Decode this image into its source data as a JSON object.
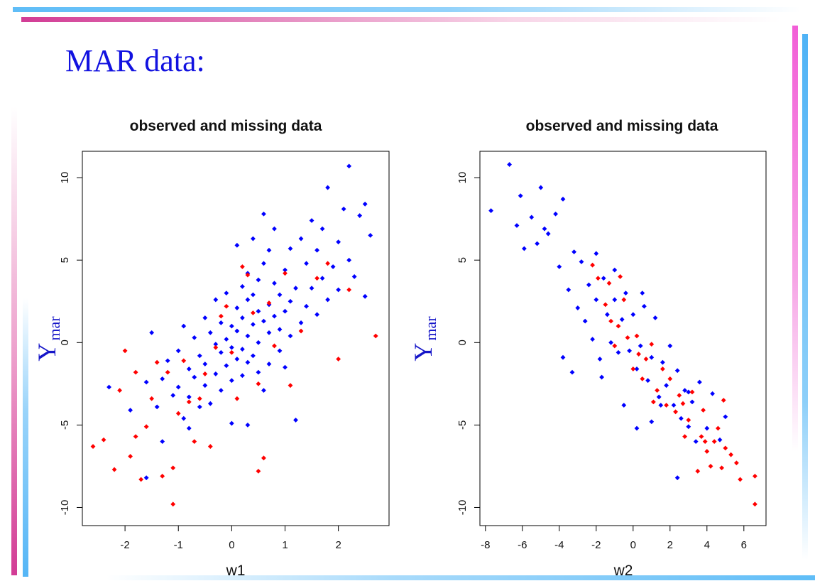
{
  "slide": {
    "title": "MAR data:"
  },
  "colors": {
    "observed": "#0000ff",
    "missing": "#ff0000",
    "title": "#1212e0"
  },
  "chart_data": [
    {
      "type": "scatter",
      "title": "observed and missing data",
      "xlabel": "w1",
      "ylabel_main": "Y",
      "ylabel_sub": "mar",
      "xlim": [
        -2.8,
        2.95
      ],
      "ylim": [
        -11.1,
        11.6
      ],
      "xticks": [
        -2,
        -1,
        0,
        1,
        2
      ],
      "yticks": [
        -10,
        -5,
        0,
        5,
        10
      ],
      "grid": false,
      "series": [
        {
          "color": "#0000ff",
          "points": [
            [
              -2.3,
              -2.7
            ],
            [
              -1.9,
              -4.1
            ],
            [
              -1.6,
              -2.4
            ],
            [
              -1.4,
              -3.9
            ],
            [
              -1.3,
              -2.2
            ],
            [
              -1.2,
              -1.1
            ],
            [
              -1.1,
              -3.2
            ],
            [
              -1.0,
              -0.5
            ],
            [
              -1.0,
              -2.7
            ],
            [
              -0.9,
              -4.6
            ],
            [
              -0.9,
              1.0
            ],
            [
              -0.8,
              -1.6
            ],
            [
              -0.8,
              -3.3
            ],
            [
              -0.7,
              0.3
            ],
            [
              -0.7,
              -2.1
            ],
            [
              -0.6,
              -0.8
            ],
            [
              -0.6,
              -3.9
            ],
            [
              -0.5,
              1.5
            ],
            [
              -0.5,
              -1.3
            ],
            [
              -0.5,
              -2.6
            ],
            [
              -0.4,
              0.6
            ],
            [
              -0.4,
              -3.7
            ],
            [
              -0.3,
              -0.1
            ],
            [
              -0.3,
              -1.9
            ],
            [
              -0.3,
              2.6
            ],
            [
              -0.2,
              1.2
            ],
            [
              -0.2,
              -0.6
            ],
            [
              -0.2,
              -2.9
            ],
            [
              -0.1,
              0.2
            ],
            [
              -0.1,
              3.0
            ],
            [
              -0.1,
              -1.4
            ],
            [
              0.0,
              1.0
            ],
            [
              0.0,
              -0.3
            ],
            [
              0.0,
              -2.3
            ],
            [
              0.0,
              -4.9
            ],
            [
              0.1,
              0.7
            ],
            [
              0.1,
              2.1
            ],
            [
              0.1,
              -1.0
            ],
            [
              0.1,
              5.9
            ],
            [
              0.2,
              1.5
            ],
            [
              0.2,
              -0.4
            ],
            [
              0.2,
              3.4
            ],
            [
              0.2,
              -2.0
            ],
            [
              0.3,
              0.4
            ],
            [
              0.3,
              2.6
            ],
            [
              0.3,
              -1.2
            ],
            [
              0.3,
              4.2
            ],
            [
              0.4,
              1.1
            ],
            [
              0.4,
              -0.8
            ],
            [
              0.4,
              2.9
            ],
            [
              0.4,
              6.3
            ],
            [
              0.5,
              0.0
            ],
            [
              0.5,
              1.9
            ],
            [
              0.5,
              -1.8
            ],
            [
              0.5,
              3.8
            ],
            [
              0.6,
              7.8
            ],
            [
              0.6,
              1.3
            ],
            [
              0.6,
              4.8
            ],
            [
              0.6,
              -2.9
            ],
            [
              0.7,
              0.6
            ],
            [
              0.7,
              2.3
            ],
            [
              0.7,
              5.6
            ],
            [
              0.7,
              -1.3
            ],
            [
              0.8,
              1.6
            ],
            [
              0.8,
              3.6
            ],
            [
              0.8,
              6.9
            ],
            [
              0.9,
              0.8
            ],
            [
              0.9,
              2.9
            ],
            [
              0.9,
              -0.5
            ],
            [
              1.0,
              1.9
            ],
            [
              1.0,
              4.4
            ],
            [
              1.0,
              -1.5
            ],
            [
              1.1,
              2.5
            ],
            [
              1.1,
              0.4
            ],
            [
              1.1,
              5.7
            ],
            [
              1.2,
              3.3
            ],
            [
              1.2,
              -4.7
            ],
            [
              1.3,
              1.2
            ],
            [
              1.3,
              6.3
            ],
            [
              1.4,
              2.2
            ],
            [
              1.4,
              4.8
            ],
            [
              1.5,
              7.4
            ],
            [
              1.5,
              3.3
            ],
            [
              1.6,
              1.7
            ],
            [
              1.6,
              5.6
            ],
            [
              1.7,
              3.9
            ],
            [
              1.7,
              6.9
            ],
            [
              1.8,
              2.6
            ],
            [
              1.8,
              9.4
            ],
            [
              1.9,
              4.6
            ],
            [
              2.0,
              6.1
            ],
            [
              2.0,
              3.2
            ],
            [
              2.1,
              8.1
            ],
            [
              2.2,
              5.0
            ],
            [
              2.2,
              10.7
            ],
            [
              2.3,
              4.0
            ],
            [
              2.4,
              7.7
            ],
            [
              2.5,
              8.4
            ],
            [
              2.5,
              2.8
            ],
            [
              2.6,
              6.5
            ],
            [
              -1.6,
              -8.2
            ],
            [
              -1.5,
              0.6
            ],
            [
              -1.3,
              -6.0
            ],
            [
              -0.8,
              -5.2
            ],
            [
              0.3,
              -5.0
            ]
          ]
        },
        {
          "color": "#ff0000",
          "points": [
            [
              -2.6,
              -6.3
            ],
            [
              -2.4,
              -5.9
            ],
            [
              -2.2,
              -7.7
            ],
            [
              -2.1,
              -2.9
            ],
            [
              -2.0,
              -0.5
            ],
            [
              -1.9,
              -6.9
            ],
            [
              -1.8,
              -5.7
            ],
            [
              -1.8,
              -1.8
            ],
            [
              -1.7,
              -8.3
            ],
            [
              -1.6,
              -5.1
            ],
            [
              -1.5,
              -3.4
            ],
            [
              -1.4,
              -1.2
            ],
            [
              -1.3,
              -8.1
            ],
            [
              -1.2,
              -1.8
            ],
            [
              -1.1,
              -7.6
            ],
            [
              -1.1,
              -9.8
            ],
            [
              -1.0,
              -4.3
            ],
            [
              -0.9,
              -1.1
            ],
            [
              -0.8,
              -3.6
            ],
            [
              -0.7,
              -6.0
            ],
            [
              -0.6,
              -3.4
            ],
            [
              -0.5,
              -1.9
            ],
            [
              -0.4,
              -6.3
            ],
            [
              -0.3,
              -0.3
            ],
            [
              -0.2,
              1.6
            ],
            [
              -0.1,
              2.2
            ],
            [
              0.0,
              -0.6
            ],
            [
              0.1,
              -3.4
            ],
            [
              0.2,
              4.6
            ],
            [
              0.3,
              4.1
            ],
            [
              0.4,
              1.8
            ],
            [
              0.5,
              -2.5
            ],
            [
              0.5,
              -7.8
            ],
            [
              0.6,
              -7.0
            ],
            [
              0.7,
              2.4
            ],
            [
              0.8,
              -0.2
            ],
            [
              1.0,
              4.2
            ],
            [
              1.1,
              -2.6
            ],
            [
              1.3,
              0.7
            ],
            [
              1.6,
              3.9
            ],
            [
              1.8,
              4.8
            ],
            [
              2.0,
              -1.0
            ],
            [
              2.2,
              3.2
            ],
            [
              2.7,
              0.4
            ]
          ]
        }
      ]
    },
    {
      "type": "scatter",
      "title": "observed and missing data",
      "xlabel": "w2",
      "ylabel_main": "Y",
      "ylabel_sub": "mar",
      "xlim": [
        -8.3,
        7.2
      ],
      "ylim": [
        -11.1,
        11.6
      ],
      "xticks": [
        -8,
        -6,
        -4,
        -2,
        0,
        2,
        4,
        6
      ],
      "yticks": [
        -10,
        -5,
        0,
        5,
        10
      ],
      "grid": false,
      "series": [
        {
          "color": "#0000ff",
          "points": [
            [
              -7.7,
              8.0
            ],
            [
              -6.7,
              10.8
            ],
            [
              -6.3,
              7.1
            ],
            [
              -6.1,
              8.9
            ],
            [
              -5.9,
              5.7
            ],
            [
              -5.5,
              7.6
            ],
            [
              -5.2,
              6.0
            ],
            [
              -5.0,
              9.4
            ],
            [
              -4.8,
              6.9
            ],
            [
              -4.6,
              6.6
            ],
            [
              -4.2,
              7.8
            ],
            [
              -4.0,
              4.6
            ],
            [
              -3.8,
              8.7
            ],
            [
              -3.5,
              3.2
            ],
            [
              -3.2,
              5.5
            ],
            [
              -3.0,
              2.1
            ],
            [
              -2.8,
              4.9
            ],
            [
              -2.6,
              1.3
            ],
            [
              -2.4,
              3.5
            ],
            [
              -2.2,
              0.2
            ],
            [
              -2.0,
              2.6
            ],
            [
              -1.8,
              -1.0
            ],
            [
              -1.6,
              3.9
            ],
            [
              -1.4,
              1.7
            ],
            [
              -1.2,
              0.0
            ],
            [
              -1.0,
              2.6
            ],
            [
              -0.8,
              -0.6
            ],
            [
              -0.6,
              1.4
            ],
            [
              -0.4,
              3.0
            ],
            [
              -0.2,
              -0.5
            ],
            [
              0.0,
              1.7
            ],
            [
              0.2,
              -1.6
            ],
            [
              0.4,
              -0.2
            ],
            [
              0.6,
              2.2
            ],
            [
              0.8,
              -2.3
            ],
            [
              1.0,
              -0.9
            ],
            [
              1.2,
              1.5
            ],
            [
              1.4,
              -3.3
            ],
            [
              1.6,
              -1.2
            ],
            [
              1.8,
              -2.6
            ],
            [
              2.0,
              -0.2
            ],
            [
              2.2,
              -3.8
            ],
            [
              2.4,
              -1.7
            ],
            [
              2.6,
              -4.6
            ],
            [
              2.8,
              -2.9
            ],
            [
              3.0,
              -5.1
            ],
            [
              3.2,
              -3.6
            ],
            [
              3.4,
              -6.0
            ],
            [
              3.6,
              -2.4
            ],
            [
              4.0,
              -5.2
            ],
            [
              4.3,
              -3.1
            ],
            [
              4.7,
              -5.9
            ],
            [
              5.0,
              -4.5
            ],
            [
              -3.8,
              -0.9
            ],
            [
              -3.3,
              -1.8
            ],
            [
              -1.7,
              -2.1
            ],
            [
              0.2,
              -5.2
            ],
            [
              2.4,
              -8.2
            ],
            [
              1.0,
              -4.8
            ],
            [
              -2.0,
              5.4
            ],
            [
              -1.0,
              4.4
            ],
            [
              0.5,
              3.0
            ],
            [
              1.5,
              -3.8
            ],
            [
              3.0,
              -3.0
            ],
            [
              -0.5,
              -3.8
            ]
          ]
        },
        {
          "color": "#ff0000",
          "points": [
            [
              -2.2,
              4.7
            ],
            [
              -1.9,
              3.9
            ],
            [
              -1.5,
              2.3
            ],
            [
              -1.2,
              1.3
            ],
            [
              -1.0,
              -0.2
            ],
            [
              -0.8,
              1.0
            ],
            [
              -0.5,
              2.6
            ],
            [
              -0.3,
              0.3
            ],
            [
              0.0,
              -1.6
            ],
            [
              0.2,
              0.4
            ],
            [
              0.5,
              -2.2
            ],
            [
              0.7,
              -1.0
            ],
            [
              1.0,
              -0.1
            ],
            [
              1.3,
              -2.9
            ],
            [
              1.6,
              -1.6
            ],
            [
              1.8,
              -3.8
            ],
            [
              2.0,
              -2.2
            ],
            [
              2.3,
              -4.2
            ],
            [
              2.5,
              -3.2
            ],
            [
              2.8,
              -5.7
            ],
            [
              3.0,
              -4.7
            ],
            [
              3.2,
              -3.0
            ],
            [
              3.5,
              -7.8
            ],
            [
              3.7,
              -5.7
            ],
            [
              3.8,
              -4.1
            ],
            [
              4.0,
              -6.6
            ],
            [
              4.2,
              -7.5
            ],
            [
              4.4,
              -6.0
            ],
            [
              4.6,
              -5.2
            ],
            [
              4.8,
              -7.6
            ],
            [
              5.0,
              -6.4
            ],
            [
              5.3,
              -6.8
            ],
            [
              5.6,
              -7.3
            ],
            [
              5.8,
              -8.3
            ],
            [
              6.6,
              -9.8
            ],
            [
              6.6,
              -8.1
            ],
            [
              -0.7,
              4.0
            ],
            [
              -1.3,
              3.6
            ],
            [
              0.3,
              -0.7
            ],
            [
              1.1,
              -3.6
            ],
            [
              2.7,
              -3.7
            ],
            [
              3.9,
              -6.0
            ],
            [
              4.9,
              -3.5
            ]
          ]
        }
      ]
    }
  ]
}
